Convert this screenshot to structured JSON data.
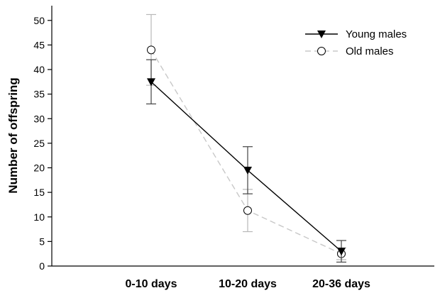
{
  "chart_data": {
    "type": "line",
    "title": "",
    "xlabel": "",
    "ylabel": "Number of offspring",
    "categories": [
      "0-10 days",
      "10-20 days",
      "20-36 days"
    ],
    "ylim": [
      0,
      53
    ],
    "yticks": [
      0,
      5,
      10,
      15,
      20,
      25,
      30,
      35,
      40,
      45,
      50
    ],
    "grid": false,
    "legend_position": "top-right",
    "series": [
      {
        "name": "Young males",
        "values": [
          37.5,
          19.5,
          3.0
        ],
        "err": [
          4.5,
          4.8,
          2.2
        ],
        "marker": "filled-down-triangle",
        "line_style": "solid",
        "color": "#000000"
      },
      {
        "name": "Old males",
        "values": [
          44.0,
          11.3,
          2.5
        ],
        "err": [
          7.2,
          4.3,
          1.2
        ],
        "marker": "open-circle",
        "line_style": "dashed",
        "color": "#c8c8c8"
      }
    ]
  }
}
